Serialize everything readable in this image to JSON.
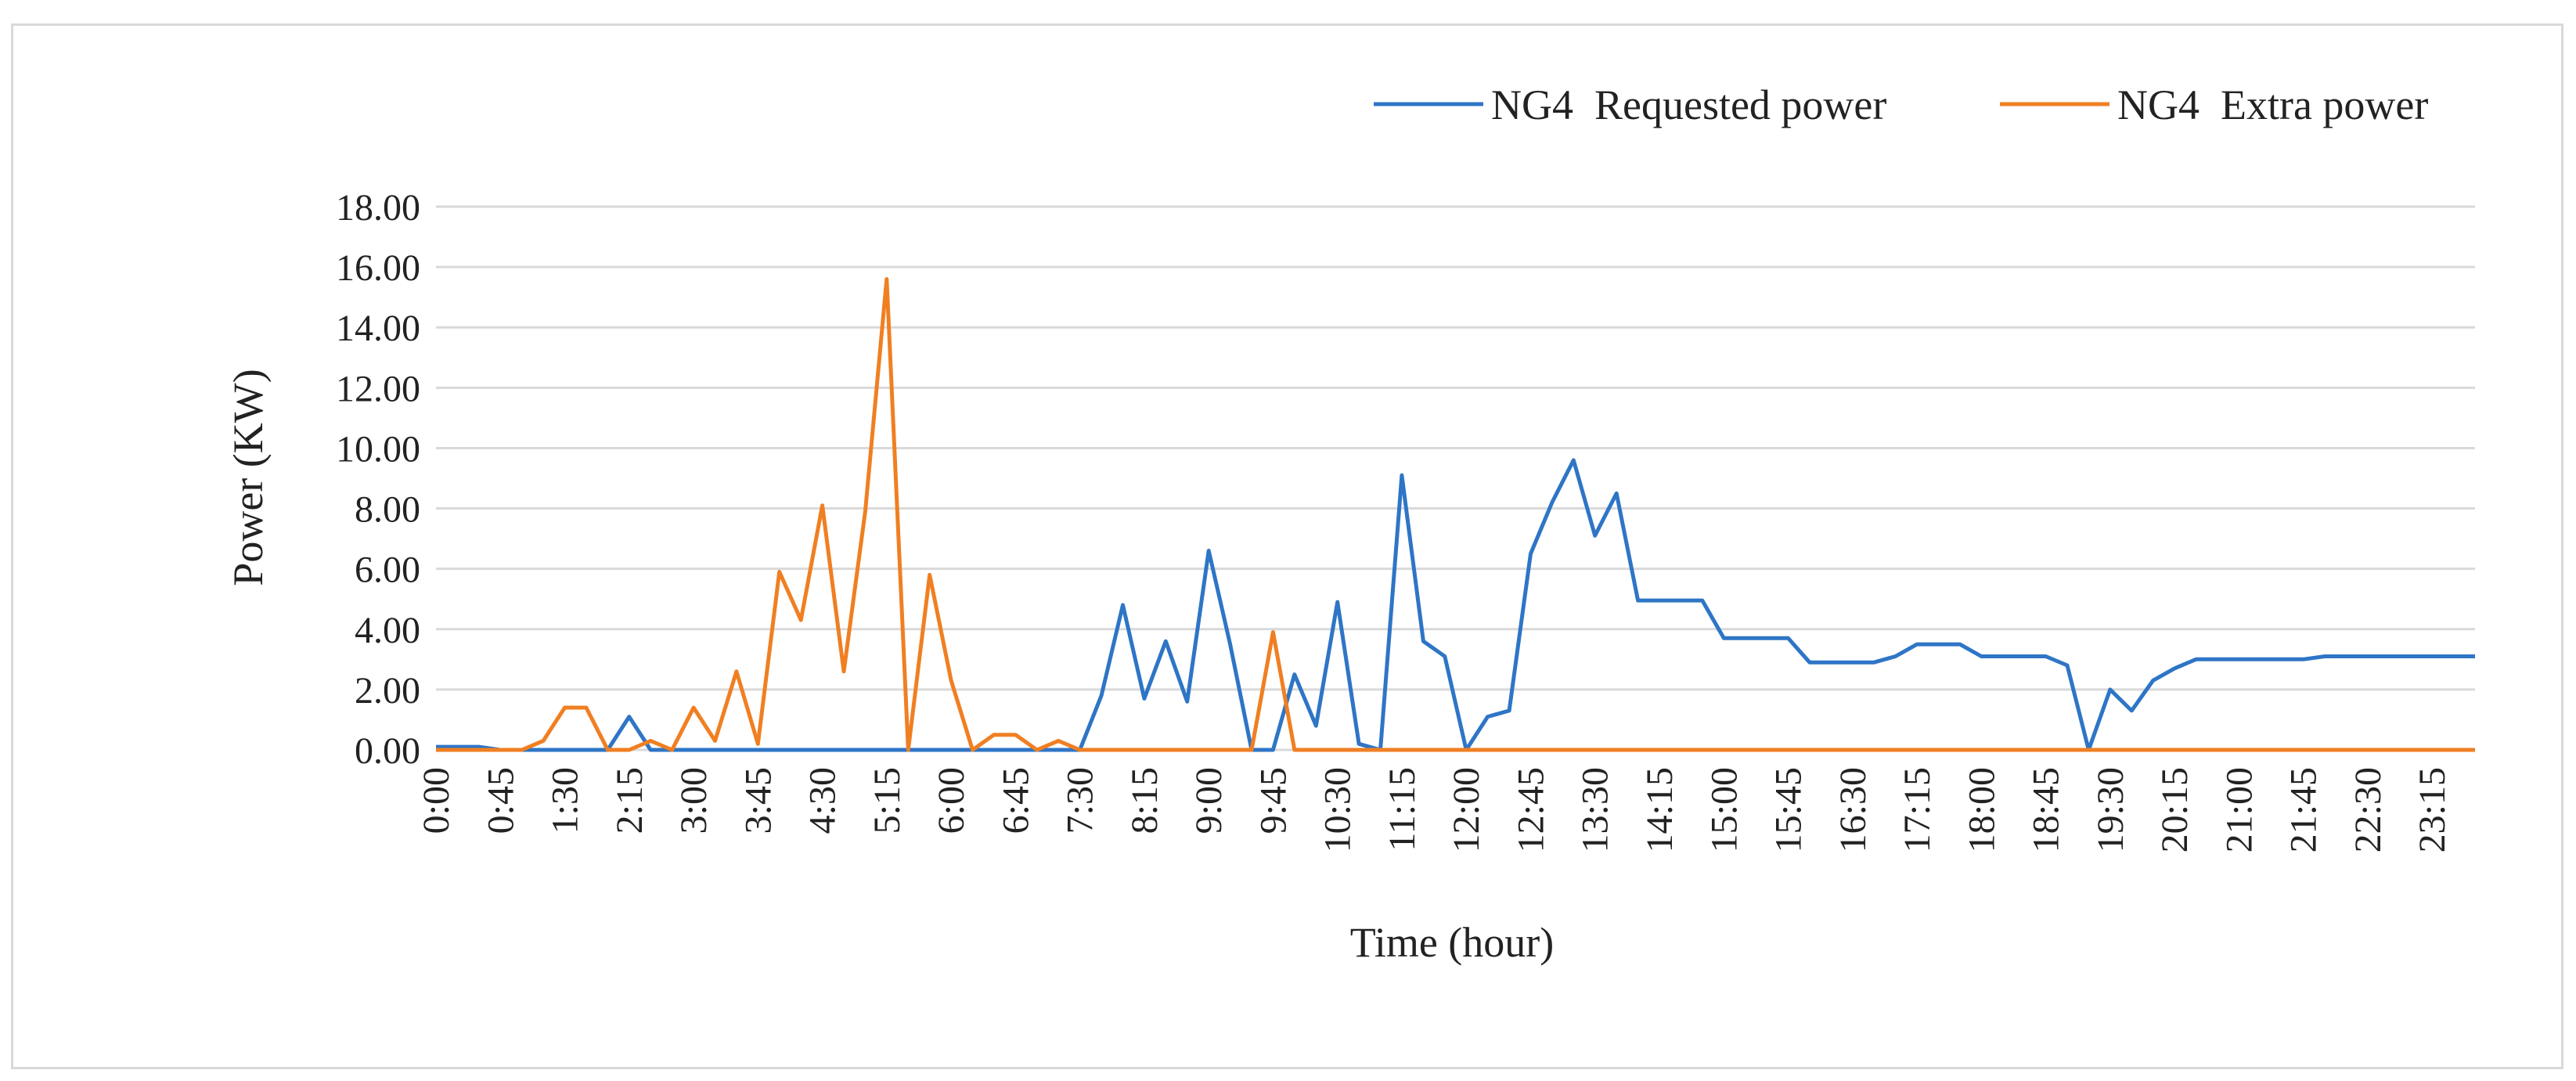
{
  "chart_data": {
    "type": "line",
    "title": "",
    "xlabel": "Time (hour)",
    "ylabel": "Power (KW)",
    "ylim": [
      0,
      18
    ],
    "yticks": [
      "0.00",
      "2.00",
      "4.00",
      "6.00",
      "8.00",
      "10.00",
      "12.00",
      "14.00",
      "16.00",
      "18.00"
    ],
    "xtick_labels": [
      "0:00",
      "0:45",
      "1:30",
      "2:15",
      "3:00",
      "3:45",
      "4:30",
      "5:15",
      "6:00",
      "6:45",
      "7:30",
      "8:15",
      "9:00",
      "9:45",
      "10:30",
      "11:15",
      "12:00",
      "12:45",
      "13:30",
      "14:15",
      "15:00",
      "15:45",
      "16:30",
      "17:15",
      "18:00",
      "18:45",
      "19:30",
      "20:15",
      "21:00",
      "21:45",
      "22:30",
      "23:15"
    ],
    "x_interval_minutes": 15,
    "grid": true,
    "legend_position": "top-right",
    "series": [
      {
        "name": "NG4  Requested power",
        "color": "#2e75c6",
        "values": [
          0.1,
          0.1,
          0.1,
          0,
          0,
          0,
          0,
          0,
          0,
          1.1,
          0,
          0,
          0,
          0,
          0,
          0,
          0,
          0,
          0,
          0,
          0,
          0,
          0,
          0,
          0,
          0,
          0,
          0,
          0,
          0,
          0,
          1.8,
          4.8,
          1.7,
          3.6,
          1.6,
          6.6,
          3.5,
          0,
          0,
          2.5,
          0.8,
          4.9,
          0.2,
          0,
          9.1,
          3.6,
          3.1,
          0,
          1.1,
          1.3,
          6.5,
          8.2,
          9.6,
          7.1,
          8.5,
          4.95,
          4.95,
          4.95,
          4.95,
          3.7,
          3.7,
          3.7,
          3.7,
          2.9,
          2.9,
          2.9,
          2.9,
          3.1,
          3.5,
          3.5,
          3.5,
          3.1,
          3.1,
          3.1,
          3.1,
          2.8,
          0,
          2.0,
          1.3,
          2.3,
          2.7,
          3.0,
          3.0,
          3.0,
          3.0,
          3.0,
          3.0,
          3.1,
          3.1,
          3.1,
          3.1,
          3.1,
          3.1,
          3.1,
          3.1
        ]
      },
      {
        "name": "NG4  Extra power",
        "color": "#f07f22",
        "values": [
          0,
          0,
          0,
          0,
          0,
          0.3,
          1.4,
          1.4,
          0,
          0,
          0.3,
          0,
          1.4,
          0.3,
          2.6,
          0.2,
          5.9,
          4.3,
          8.1,
          2.6,
          7.9,
          15.6,
          0,
          5.8,
          2.3,
          0,
          0.5,
          0.5,
          0,
          0.3,
          0,
          0,
          0,
          0,
          0,
          0,
          0,
          0,
          0,
          3.9,
          0,
          0,
          0,
          0,
          0,
          0,
          0,
          0,
          0,
          0,
          0,
          0,
          0,
          0,
          0,
          0,
          0,
          0,
          0,
          0,
          0,
          0,
          0,
          0,
          0,
          0,
          0,
          0,
          0,
          0,
          0,
          0,
          0,
          0,
          0,
          0,
          0,
          0,
          0,
          0,
          0,
          0,
          0,
          0,
          0,
          0,
          0,
          0,
          0,
          0,
          0,
          0,
          0,
          0,
          0,
          0
        ]
      }
    ]
  }
}
